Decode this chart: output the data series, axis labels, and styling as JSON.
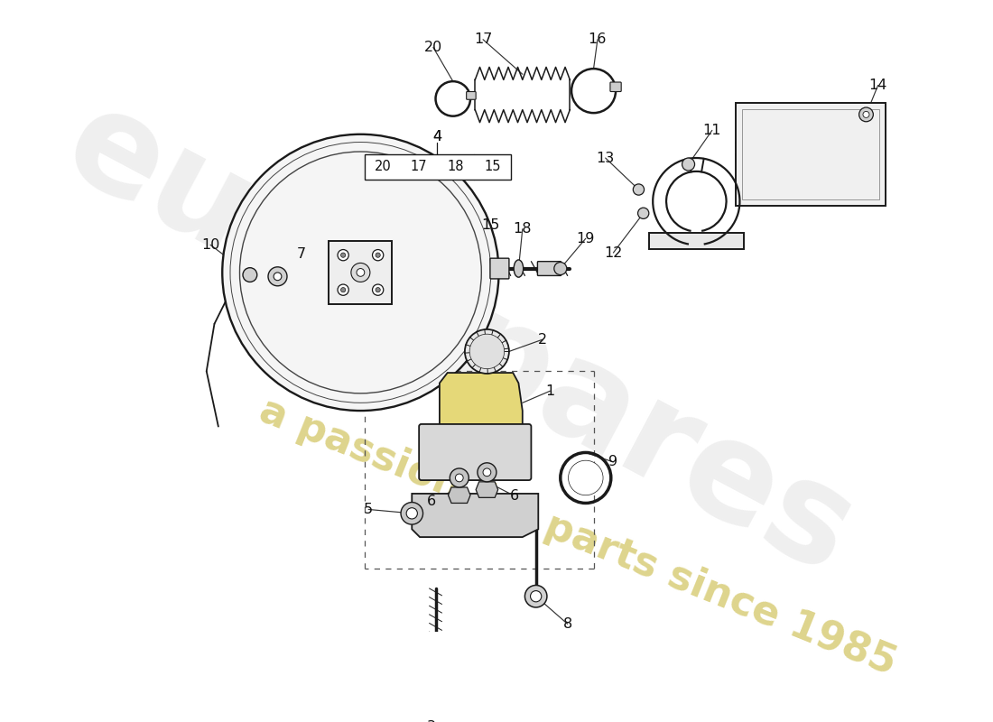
{
  "bg_color": "#ffffff",
  "watermark_text1": "eurospares",
  "watermark_text2": "a passion for parts since 1985",
  "line_color": "#1a1a1a",
  "label_fontsize": 11.5,
  "watermark_color1": "#c8c8c8",
  "watermark_color2": "#c8b840"
}
